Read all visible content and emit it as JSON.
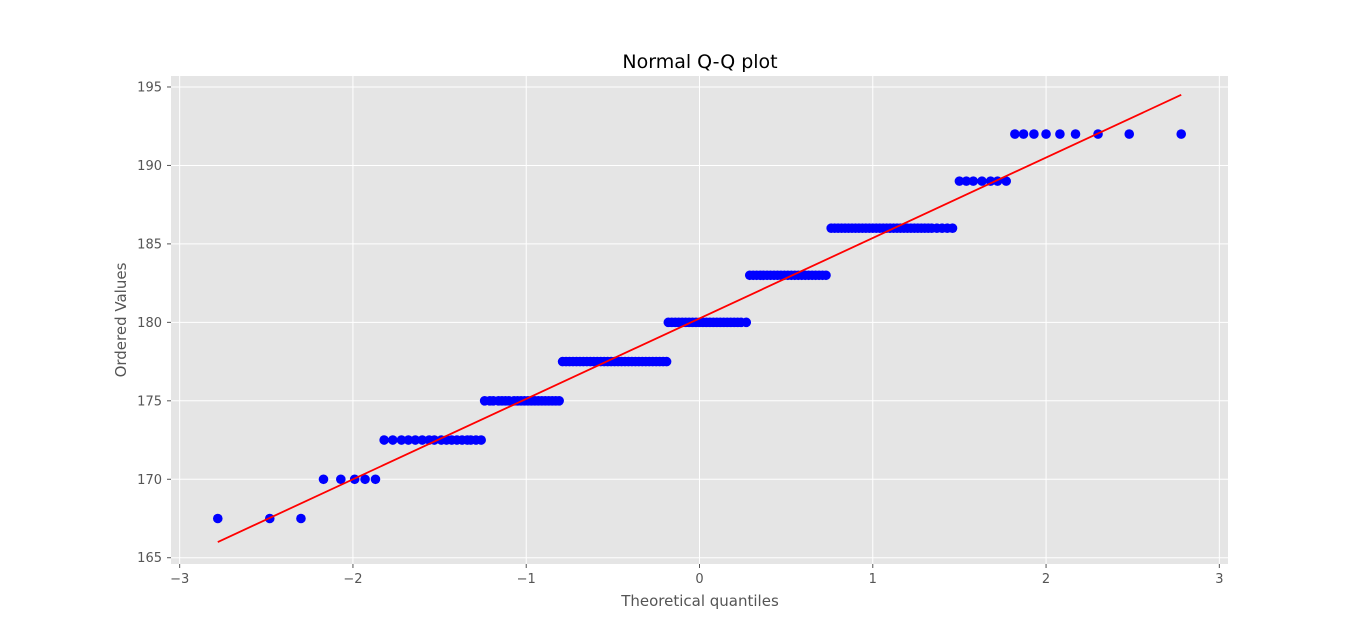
{
  "chart_data": {
    "type": "scatter",
    "title": "Normal Q-Q plot",
    "xlabel": "Theoretical quantiles",
    "ylabel": "Ordered Values",
    "xlim": [
      -3.05,
      3.05
    ],
    "ylim": [
      164.6,
      195.7
    ],
    "xticks": [
      -3,
      -2,
      -1,
      0,
      1,
      2,
      3
    ],
    "xtick_labels": [
      "−3",
      "−2",
      "−1",
      "0",
      "1",
      "2",
      "3"
    ],
    "yticks": [
      165,
      170,
      175,
      180,
      185,
      190,
      195
    ],
    "ytick_labels": [
      "165",
      "170",
      "175",
      "180",
      "185",
      "190",
      "195"
    ],
    "grid": true,
    "background": "#e5e5e5",
    "marker_color": "#0000ff",
    "line_color": "#ff0000",
    "points": [
      {
        "x": -2.78,
        "y": 167.5
      },
      {
        "x": -2.48,
        "y": 167.5
      },
      {
        "x": -2.3,
        "y": 167.5
      },
      {
        "x": -2.17,
        "y": 170.0
      },
      {
        "x": -2.07,
        "y": 170.0
      },
      {
        "x": -1.99,
        "y": 170.0
      },
      {
        "x": -1.93,
        "y": 170.0
      },
      {
        "x": -1.87,
        "y": 170.0
      },
      {
        "x": -1.82,
        "y": 172.5
      },
      {
        "x": -1.77,
        "y": 172.5
      },
      {
        "x": -1.72,
        "y": 172.5
      },
      {
        "x": -1.68,
        "y": 172.5
      },
      {
        "x": -1.64,
        "y": 172.5
      },
      {
        "x": -1.6,
        "y": 172.5
      },
      {
        "x": -1.56,
        "y": 172.5
      },
      {
        "x": -1.53,
        "y": 172.5
      },
      {
        "x": -1.49,
        "y": 172.5
      },
      {
        "x": -1.46,
        "y": 172.5
      },
      {
        "x": -1.43,
        "y": 172.5
      },
      {
        "x": -1.4,
        "y": 172.5
      },
      {
        "x": -1.37,
        "y": 172.5
      },
      {
        "x": -1.34,
        "y": 172.5
      },
      {
        "x": -1.32,
        "y": 172.5
      },
      {
        "x": -1.29,
        "y": 172.5
      },
      {
        "x": -1.26,
        "y": 172.5
      },
      {
        "x": -1.24,
        "y": 175.0
      },
      {
        "x": -1.21,
        "y": 175.0
      },
      {
        "x": -1.19,
        "y": 175.0
      },
      {
        "x": -1.16,
        "y": 175.0
      },
      {
        "x": -1.14,
        "y": 175.0
      },
      {
        "x": -1.12,
        "y": 175.0
      },
      {
        "x": -1.1,
        "y": 175.0
      },
      {
        "x": -1.07,
        "y": 175.0
      },
      {
        "x": -1.05,
        "y": 175.0
      },
      {
        "x": -1.03,
        "y": 175.0
      },
      {
        "x": -1.01,
        "y": 175.0
      },
      {
        "x": -0.99,
        "y": 175.0
      },
      {
        "x": -0.97,
        "y": 175.0
      },
      {
        "x": -0.95,
        "y": 175.0
      },
      {
        "x": -0.93,
        "y": 175.0
      },
      {
        "x": -0.91,
        "y": 175.0
      },
      {
        "x": -0.89,
        "y": 175.0
      },
      {
        "x": -0.87,
        "y": 175.0
      },
      {
        "x": -0.85,
        "y": 175.0
      },
      {
        "x": -0.83,
        "y": 175.0
      },
      {
        "x": -0.81,
        "y": 175.0
      },
      {
        "x": -0.79,
        "y": 177.5
      },
      {
        "x": -0.77,
        "y": 177.5
      },
      {
        "x": -0.75,
        "y": 177.5
      },
      {
        "x": -0.73,
        "y": 177.5
      },
      {
        "x": -0.71,
        "y": 177.5
      },
      {
        "x": -0.69,
        "y": 177.5
      },
      {
        "x": -0.67,
        "y": 177.5
      },
      {
        "x": -0.65,
        "y": 177.5
      },
      {
        "x": -0.63,
        "y": 177.5
      },
      {
        "x": -0.61,
        "y": 177.5
      },
      {
        "x": -0.59,
        "y": 177.5
      },
      {
        "x": -0.57,
        "y": 177.5
      },
      {
        "x": -0.55,
        "y": 177.5
      },
      {
        "x": -0.53,
        "y": 177.5
      },
      {
        "x": -0.51,
        "y": 177.5
      },
      {
        "x": -0.49,
        "y": 177.5
      },
      {
        "x": -0.47,
        "y": 177.5
      },
      {
        "x": -0.45,
        "y": 177.5
      },
      {
        "x": -0.43,
        "y": 177.5
      },
      {
        "x": -0.41,
        "y": 177.5
      },
      {
        "x": -0.39,
        "y": 177.5
      },
      {
        "x": -0.37,
        "y": 177.5
      },
      {
        "x": -0.35,
        "y": 177.5
      },
      {
        "x": -0.33,
        "y": 177.5
      },
      {
        "x": -0.31,
        "y": 177.5
      },
      {
        "x": -0.29,
        "y": 177.5
      },
      {
        "x": -0.27,
        "y": 177.5
      },
      {
        "x": -0.25,
        "y": 177.5
      },
      {
        "x": -0.23,
        "y": 177.5
      },
      {
        "x": -0.21,
        "y": 177.5
      },
      {
        "x": -0.19,
        "y": 177.5
      },
      {
        "x": -0.18,
        "y": 180.0
      },
      {
        "x": -0.16,
        "y": 180.0
      },
      {
        "x": -0.14,
        "y": 180.0
      },
      {
        "x": -0.12,
        "y": 180.0
      },
      {
        "x": -0.1,
        "y": 180.0
      },
      {
        "x": -0.08,
        "y": 180.0
      },
      {
        "x": -0.06,
        "y": 180.0
      },
      {
        "x": -0.04,
        "y": 180.0
      },
      {
        "x": -0.02,
        "y": 180.0
      },
      {
        "x": 0.0,
        "y": 180.0
      },
      {
        "x": 0.02,
        "y": 180.0
      },
      {
        "x": 0.04,
        "y": 180.0
      },
      {
        "x": 0.06,
        "y": 180.0
      },
      {
        "x": 0.08,
        "y": 180.0
      },
      {
        "x": 0.1,
        "y": 180.0
      },
      {
        "x": 0.12,
        "y": 180.0
      },
      {
        "x": 0.14,
        "y": 180.0
      },
      {
        "x": 0.16,
        "y": 180.0
      },
      {
        "x": 0.18,
        "y": 180.0
      },
      {
        "x": 0.2,
        "y": 180.0
      },
      {
        "x": 0.22,
        "y": 180.0
      },
      {
        "x": 0.24,
        "y": 180.0
      },
      {
        "x": 0.27,
        "y": 180.0
      },
      {
        "x": 0.29,
        "y": 183.0
      },
      {
        "x": 0.31,
        "y": 183.0
      },
      {
        "x": 0.33,
        "y": 183.0
      },
      {
        "x": 0.35,
        "y": 183.0
      },
      {
        "x": 0.37,
        "y": 183.0
      },
      {
        "x": 0.39,
        "y": 183.0
      },
      {
        "x": 0.41,
        "y": 183.0
      },
      {
        "x": 0.43,
        "y": 183.0
      },
      {
        "x": 0.45,
        "y": 183.0
      },
      {
        "x": 0.47,
        "y": 183.0
      },
      {
        "x": 0.49,
        "y": 183.0
      },
      {
        "x": 0.51,
        "y": 183.0
      },
      {
        "x": 0.53,
        "y": 183.0
      },
      {
        "x": 0.55,
        "y": 183.0
      },
      {
        "x": 0.57,
        "y": 183.0
      },
      {
        "x": 0.59,
        "y": 183.0
      },
      {
        "x": 0.61,
        "y": 183.0
      },
      {
        "x": 0.63,
        "y": 183.0
      },
      {
        "x": 0.65,
        "y": 183.0
      },
      {
        "x": 0.67,
        "y": 183.0
      },
      {
        "x": 0.69,
        "y": 183.0
      },
      {
        "x": 0.71,
        "y": 183.0
      },
      {
        "x": 0.73,
        "y": 183.0
      },
      {
        "x": 0.76,
        "y": 186.0
      },
      {
        "x": 0.78,
        "y": 186.0
      },
      {
        "x": 0.8,
        "y": 186.0
      },
      {
        "x": 0.82,
        "y": 186.0
      },
      {
        "x": 0.84,
        "y": 186.0
      },
      {
        "x": 0.86,
        "y": 186.0
      },
      {
        "x": 0.88,
        "y": 186.0
      },
      {
        "x": 0.9,
        "y": 186.0
      },
      {
        "x": 0.92,
        "y": 186.0
      },
      {
        "x": 0.94,
        "y": 186.0
      },
      {
        "x": 0.96,
        "y": 186.0
      },
      {
        "x": 0.98,
        "y": 186.0
      },
      {
        "x": 1.0,
        "y": 186.0
      },
      {
        "x": 1.02,
        "y": 186.0
      },
      {
        "x": 1.04,
        "y": 186.0
      },
      {
        "x": 1.06,
        "y": 186.0
      },
      {
        "x": 1.08,
        "y": 186.0
      },
      {
        "x": 1.1,
        "y": 186.0
      },
      {
        "x": 1.12,
        "y": 186.0
      },
      {
        "x": 1.14,
        "y": 186.0
      },
      {
        "x": 1.16,
        "y": 186.0
      },
      {
        "x": 1.18,
        "y": 186.0
      },
      {
        "x": 1.2,
        "y": 186.0
      },
      {
        "x": 1.22,
        "y": 186.0
      },
      {
        "x": 1.24,
        "y": 186.0
      },
      {
        "x": 1.26,
        "y": 186.0
      },
      {
        "x": 1.28,
        "y": 186.0
      },
      {
        "x": 1.3,
        "y": 186.0
      },
      {
        "x": 1.32,
        "y": 186.0
      },
      {
        "x": 1.34,
        "y": 186.0
      },
      {
        "x": 1.37,
        "y": 186.0
      },
      {
        "x": 1.4,
        "y": 186.0
      },
      {
        "x": 1.43,
        "y": 186.0
      },
      {
        "x": 1.46,
        "y": 186.0
      },
      {
        "x": 1.5,
        "y": 189.0
      },
      {
        "x": 1.54,
        "y": 189.0
      },
      {
        "x": 1.58,
        "y": 189.0
      },
      {
        "x": 1.63,
        "y": 189.0
      },
      {
        "x": 1.68,
        "y": 189.0
      },
      {
        "x": 1.72,
        "y": 189.0
      },
      {
        "x": 1.77,
        "y": 189.0
      },
      {
        "x": 1.82,
        "y": 192.0
      },
      {
        "x": 1.87,
        "y": 192.0
      },
      {
        "x": 1.93,
        "y": 192.0
      },
      {
        "x": 2.0,
        "y": 192.0
      },
      {
        "x": 2.08,
        "y": 192.0
      },
      {
        "x": 2.17,
        "y": 192.0
      },
      {
        "x": 2.3,
        "y": 192.0
      },
      {
        "x": 2.48,
        "y": 192.0
      },
      {
        "x": 2.78,
        "y": 192.0
      }
    ],
    "fit_line": {
      "x": [
        -2.78,
        2.78
      ],
      "y": [
        166.0,
        194.5
      ]
    }
  }
}
